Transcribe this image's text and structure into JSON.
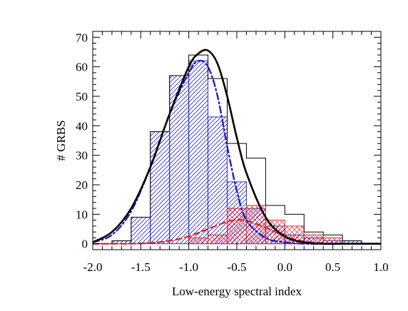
{
  "chart_data": {
    "type": "bar",
    "xlabel": "Low-energy spectral index",
    "ylabel": "# GRBS",
    "xlim": [
      -2.0,
      1.0
    ],
    "ylim": [
      -2,
      72
    ],
    "grid": false,
    "legend": "none",
    "x_ticks": [
      "-2.0",
      "-1.5",
      "-1.0",
      "-0.5",
      "0.0",
      "0.5",
      "1.0"
    ],
    "x_tick_values": [
      -2.0,
      -1.5,
      -1.0,
      -0.5,
      0.0,
      0.5,
      1.0
    ],
    "y_ticks": [
      "0",
      "10",
      "20",
      "30",
      "40",
      "50",
      "60",
      "70"
    ],
    "y_tick_values": [
      0,
      10,
      20,
      30,
      40,
      50,
      60,
      70
    ],
    "bin_edges": [
      -2.0,
      -1.8,
      -1.6,
      -1.4,
      -1.2,
      -1.0,
      -0.8,
      -0.6,
      -0.4,
      -0.2,
      0.0,
      0.2,
      0.4,
      0.6,
      0.8,
      1.0
    ],
    "series": [
      {
        "role": "total-histogram",
        "values": [
          0,
          1,
          9,
          38,
          57,
          64,
          56,
          34,
          29,
          13,
          10,
          4,
          3,
          1,
          0
        ],
        "color": "#000000",
        "style": "step-outline"
      },
      {
        "role": "blue-hatched-histogram",
        "values": [
          0,
          1,
          9,
          38,
          57,
          62,
          43,
          21,
          12,
          6,
          3,
          2,
          1,
          1,
          0
        ],
        "color": "#2020c0",
        "style": "hatched-diagonal"
      },
      {
        "role": "red-crosshatched-histogram",
        "values": [
          0,
          0,
          0,
          0,
          0,
          2,
          3,
          12,
          13,
          8,
          6,
          3,
          2,
          0,
          0
        ],
        "color": "#e02020",
        "style": "crosshatched"
      },
      {
        "role": "total-fit",
        "color": "#000000",
        "style": "solid",
        "x": [
          -2.0,
          -1.8,
          -1.6,
          -1.4,
          -1.2,
          -1.0,
          -0.9,
          -0.8,
          -0.7,
          -0.6,
          -0.5,
          -0.4,
          -0.2,
          0.0,
          0.2,
          0.4,
          0.6,
          0.8,
          1.0
        ],
        "y": [
          0.5,
          4,
          12,
          26,
          44,
          60,
          64.5,
          65.5,
          61,
          50,
          36,
          24,
          9,
          2.5,
          0.5,
          0,
          0,
          0,
          0
        ]
      },
      {
        "role": "blue-component-fit",
        "color": "#2020c0",
        "style": "dash-dot",
        "x": [
          -2.0,
          -1.8,
          -1.6,
          -1.4,
          -1.2,
          -1.0,
          -0.9,
          -0.8,
          -0.7,
          -0.6,
          -0.5,
          -0.4,
          -0.2,
          0.0,
          0.2,
          0.4,
          0.6,
          0.8,
          1.0
        ],
        "y": [
          0.5,
          3,
          11,
          26,
          44,
          58,
          62,
          60,
          50,
          33,
          18,
          8,
          2,
          0.5,
          0,
          0,
          0,
          0,
          0
        ]
      },
      {
        "role": "red-component-fit",
        "color": "#e02020",
        "style": "dashed",
        "x": [
          -2.0,
          -1.8,
          -1.6,
          -1.4,
          -1.2,
          -1.0,
          -0.8,
          -0.6,
          -0.5,
          -0.4,
          -0.2,
          0.0,
          0.2,
          0.4,
          0.6,
          0.8,
          1.0
        ],
        "y": [
          0,
          0,
          0,
          0.3,
          1,
          2.5,
          5,
          7.5,
          8,
          7.8,
          5.5,
          2.5,
          0.8,
          0.2,
          0,
          0,
          0
        ]
      }
    ]
  }
}
